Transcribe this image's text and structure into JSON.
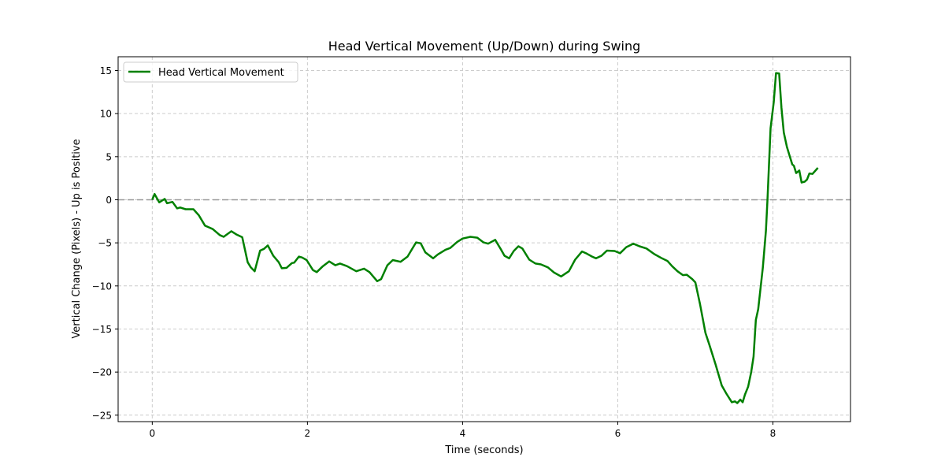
{
  "chart_data": {
    "type": "line",
    "title": "Head Vertical Movement (Up/Down) during Swing",
    "xlabel": "Time (seconds)",
    "ylabel": "Vertical Change (Pixels) - Up is Positive",
    "xlim": [
      -0.44,
      9.0
    ],
    "ylim": [
      -25.75,
      16.6
    ],
    "xticks": [
      0,
      2,
      4,
      6,
      8
    ],
    "xtick_labels": [
      "0",
      "2",
      "4",
      "6",
      "8"
    ],
    "yticks": [
      -25,
      -20,
      -15,
      -10,
      -5,
      0,
      5,
      10,
      15
    ],
    "ytick_labels": [
      "−25",
      "−20",
      "−15",
      "−10",
      "−5",
      "0",
      "5",
      "10",
      "15"
    ],
    "grid": true,
    "reference_line": {
      "y": 0,
      "style": "dashed",
      "color": "#999999"
    },
    "legend": {
      "placement": "top-left",
      "entries": [
        "Head Vertical Movement"
      ]
    },
    "series": [
      {
        "name": "Head Vertical Movement",
        "color": "#008000",
        "x": [
          0,
          0.03,
          0.09,
          0.16,
          0.19,
          0.26,
          0.32,
          0.36,
          0.43,
          0.53,
          0.6,
          0.68,
          0.73,
          0.78,
          0.87,
          0.92,
          1.02,
          1.09,
          1.16,
          1.23,
          1.27,
          1.32,
          1.39,
          1.44,
          1.49,
          1.56,
          1.63,
          1.67,
          1.73,
          1.8,
          1.83,
          1.89,
          1.93,
          1.99,
          2.07,
          2.12,
          2.2,
          2.28,
          2.36,
          2.42,
          2.51,
          2.63,
          2.73,
          2.8,
          2.9,
          2.95,
          3.03,
          3.1,
          3.2,
          3.29,
          3.4,
          3.46,
          3.52,
          3.62,
          3.68,
          3.78,
          3.84,
          3.93,
          4.0,
          4.1,
          4.19,
          4.27,
          4.33,
          4.42,
          4.49,
          4.54,
          4.6,
          4.66,
          4.72,
          4.77,
          4.86,
          4.94,
          5.01,
          5.1,
          5.18,
          5.27,
          5.37,
          5.45,
          5.54,
          5.6,
          5.67,
          5.72,
          5.79,
          5.86,
          5.96,
          6.03,
          6.11,
          6.2,
          6.28,
          6.37,
          6.47,
          6.57,
          6.64,
          6.7,
          6.77,
          6.84,
          6.89,
          6.96,
          7.0,
          7.06,
          7.13,
          7.18,
          7.26,
          7.34,
          7.4,
          7.47,
          7.51,
          7.54,
          7.58,
          7.61,
          7.64,
          7.68,
          7.72,
          7.75,
          7.78,
          7.81,
          7.87,
          7.91,
          7.93,
          7.97,
          8.01,
          8.04,
          8.08,
          8.11,
          8.14,
          8.18,
          8.21,
          8.25,
          8.27,
          8.3,
          8.34,
          8.37,
          8.41,
          8.44,
          8.47,
          8.51,
          8.58
        ],
        "y": [
          0,
          0.67,
          -0.3,
          0.1,
          -0.4,
          -0.25,
          -1.0,
          -0.9,
          -1.1,
          -1.1,
          -1.8,
          -3.0,
          -3.2,
          -3.4,
          -4.1,
          -4.3,
          -3.65,
          -4.05,
          -4.35,
          -7.25,
          -7.85,
          -8.3,
          -5.9,
          -5.7,
          -5.3,
          -6.5,
          -7.25,
          -7.95,
          -7.9,
          -7.35,
          -7.3,
          -6.6,
          -6.7,
          -7.0,
          -8.15,
          -8.4,
          -7.7,
          -7.15,
          -7.6,
          -7.4,
          -7.7,
          -8.3,
          -8.0,
          -8.4,
          -9.45,
          -9.2,
          -7.6,
          -7.0,
          -7.2,
          -6.6,
          -4.95,
          -5.05,
          -6.1,
          -6.8,
          -6.35,
          -5.8,
          -5.6,
          -4.9,
          -4.5,
          -4.3,
          -4.4,
          -4.95,
          -5.1,
          -4.65,
          -5.7,
          -6.5,
          -6.8,
          -5.95,
          -5.4,
          -5.65,
          -6.95,
          -7.4,
          -7.5,
          -7.85,
          -8.45,
          -8.9,
          -8.3,
          -6.95,
          -6.0,
          -6.25,
          -6.6,
          -6.8,
          -6.5,
          -5.9,
          -5.95,
          -6.2,
          -5.5,
          -5.1,
          -5.4,
          -5.65,
          -6.3,
          -6.8,
          -7.1,
          -7.7,
          -8.3,
          -8.75,
          -8.7,
          -9.2,
          -9.6,
          -12.1,
          -15.45,
          -16.8,
          -19.1,
          -21.55,
          -22.5,
          -23.5,
          -23.4,
          -23.6,
          -23.2,
          -23.5,
          -22.6,
          -21.7,
          -20.0,
          -18.2,
          -13.95,
          -12.7,
          -7.85,
          -3.6,
          0.05,
          8.3,
          11.3,
          14.7,
          14.65,
          10.7,
          7.8,
          6.15,
          5.25,
          4.1,
          3.95,
          3.1,
          3.4,
          2.0,
          2.1,
          2.35,
          3.05,
          3.0,
          3.7
        ]
      }
    ]
  }
}
